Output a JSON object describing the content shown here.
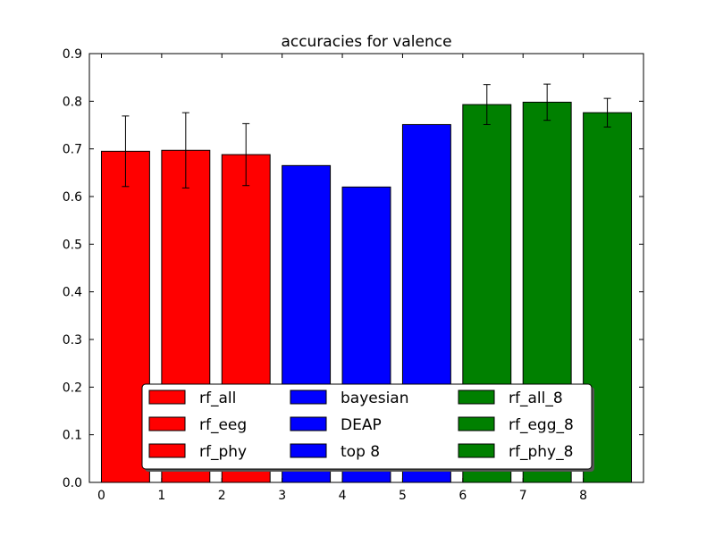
{
  "chart_data": {
    "type": "bar",
    "title": "accuracies for valence",
    "xlabel": "",
    "ylabel": "",
    "xlim": [
      -0.2,
      9.0
    ],
    "ylim": [
      0.0,
      0.9
    ],
    "x_ticks": [
      "0",
      "1",
      "2",
      "3",
      "4",
      "5",
      "6",
      "7",
      "8"
    ],
    "y_ticks": [
      "0.0",
      "0.1",
      "0.2",
      "0.3",
      "0.4",
      "0.5",
      "0.6",
      "0.7",
      "0.8",
      "0.9"
    ],
    "grid": false,
    "legend_placement": "lower-center",
    "bars": [
      {
        "label": "rf_all",
        "x": 0,
        "value": 0.695,
        "err": 0.074,
        "color": "#ff0000"
      },
      {
        "label": "rf_eeg",
        "x": 1,
        "value": 0.697,
        "err": 0.079,
        "color": "#ff0000"
      },
      {
        "label": "rf_phy",
        "x": 2,
        "value": 0.688,
        "err": 0.065,
        "color": "#ff0000"
      },
      {
        "label": "bayesian",
        "x": 3,
        "value": 0.665,
        "err": null,
        "color": "#0000ff"
      },
      {
        "label": "DEAP",
        "x": 4,
        "value": 0.62,
        "err": null,
        "color": "#0000ff"
      },
      {
        "label": "top 8",
        "x": 5,
        "value": 0.751,
        "err": null,
        "color": "#0000ff"
      },
      {
        "label": "rf_all_8",
        "x": 6,
        "value": 0.793,
        "err": 0.042,
        "color": "#008000"
      },
      {
        "label": "rf_egg_8",
        "x": 7,
        "value": 0.798,
        "err": 0.038,
        "color": "#008000"
      },
      {
        "label": "rf_phy_8",
        "x": 8,
        "value": 0.776,
        "err": 0.03,
        "color": "#008000"
      }
    ]
  }
}
